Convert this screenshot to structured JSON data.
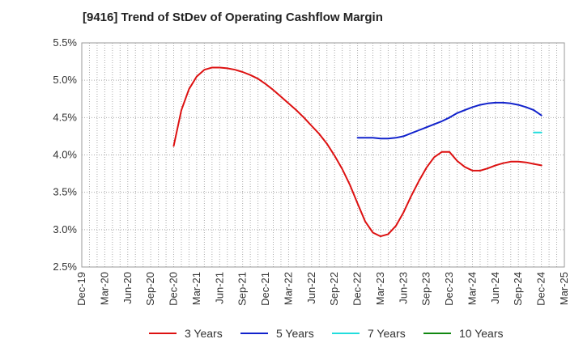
{
  "title": "[9416]  Trend of StDev of Operating Cashflow Margin",
  "chart_data": {
    "type": "line",
    "title": "[9416]  Trend of StDev of Operating Cashflow Margin",
    "xlabel": "",
    "ylabel": "",
    "x_tick_labels": [
      "Dec-19",
      "Mar-20",
      "Jun-20",
      "Sep-20",
      "Dec-20",
      "Mar-21",
      "Jun-21",
      "Sep-21",
      "Dec-21",
      "Mar-22",
      "Jun-22",
      "Sep-22",
      "Dec-22",
      "Mar-23",
      "Jun-23",
      "Sep-23",
      "Dec-23",
      "Mar-24",
      "Jun-24",
      "Sep-24",
      "Dec-24",
      "Mar-25"
    ],
    "y_tick_labels": [
      "2.5%",
      "3.0%",
      "3.5%",
      "4.0%",
      "4.5%",
      "5.0%",
      "5.5%"
    ],
    "ylim": [
      2.5,
      5.5
    ],
    "grid": true,
    "legend_position": "bottom",
    "series": [
      {
        "name": "3 Years",
        "color": "#dd1111",
        "points": [
          [
            "Dec-20",
            4.12
          ],
          [
            "Jan-21",
            4.6
          ],
          [
            "Feb-21",
            4.88
          ],
          [
            "Mar-21",
            5.05
          ],
          [
            "Apr-21",
            5.14
          ],
          [
            "May-21",
            5.17
          ],
          [
            "Jun-21",
            5.17
          ],
          [
            "Jul-21",
            5.16
          ],
          [
            "Aug-21",
            5.14
          ],
          [
            "Sep-21",
            5.11
          ],
          [
            "Oct-21",
            5.07
          ],
          [
            "Nov-21",
            5.02
          ],
          [
            "Dec-21",
            4.95
          ],
          [
            "Jan-22",
            4.87
          ],
          [
            "Feb-22",
            4.78
          ],
          [
            "Mar-22",
            4.69
          ],
          [
            "Apr-22",
            4.6
          ],
          [
            "May-22",
            4.5
          ],
          [
            "Jun-22",
            4.39
          ],
          [
            "Jul-22",
            4.28
          ],
          [
            "Aug-22",
            4.15
          ],
          [
            "Sep-22",
            3.99
          ],
          [
            "Oct-22",
            3.81
          ],
          [
            "Nov-22",
            3.6
          ],
          [
            "Dec-22",
            3.35
          ],
          [
            "Jan-23",
            3.11
          ],
          [
            "Feb-23",
            2.96
          ],
          [
            "Mar-23",
            2.91
          ],
          [
            "Apr-23",
            2.94
          ],
          [
            "May-23",
            3.05
          ],
          [
            "Jun-23",
            3.23
          ],
          [
            "Jul-23",
            3.45
          ],
          [
            "Aug-23",
            3.65
          ],
          [
            "Sep-23",
            3.83
          ],
          [
            "Oct-23",
            3.97
          ],
          [
            "Nov-23",
            4.04
          ],
          [
            "Dec-23",
            4.04
          ],
          [
            "Jan-24",
            3.92
          ],
          [
            "Feb-24",
            3.84
          ],
          [
            "Mar-24",
            3.79
          ],
          [
            "Apr-24",
            3.79
          ],
          [
            "May-24",
            3.82
          ],
          [
            "Jun-24",
            3.86
          ],
          [
            "Jul-24",
            3.89
          ],
          [
            "Aug-24",
            3.91
          ],
          [
            "Sep-24",
            3.91
          ],
          [
            "Oct-24",
            3.9
          ],
          [
            "Nov-24",
            3.88
          ],
          [
            "Dec-24",
            3.86
          ]
        ]
      },
      {
        "name": "5 Years",
        "color": "#1122cc",
        "points": [
          [
            "Dec-22",
            4.23
          ],
          [
            "Jan-23",
            4.23
          ],
          [
            "Feb-23",
            4.23
          ],
          [
            "Mar-23",
            4.22
          ],
          [
            "Apr-23",
            4.22
          ],
          [
            "May-23",
            4.23
          ],
          [
            "Jun-23",
            4.25
          ],
          [
            "Jul-23",
            4.29
          ],
          [
            "Aug-23",
            4.33
          ],
          [
            "Sep-23",
            4.37
          ],
          [
            "Oct-23",
            4.41
          ],
          [
            "Nov-23",
            4.45
          ],
          [
            "Dec-23",
            4.5
          ],
          [
            "Jan-24",
            4.56
          ],
          [
            "Feb-24",
            4.6
          ],
          [
            "Mar-24",
            4.64
          ],
          [
            "Apr-24",
            4.67
          ],
          [
            "May-24",
            4.69
          ],
          [
            "Jun-24",
            4.7
          ],
          [
            "Jul-24",
            4.7
          ],
          [
            "Aug-24",
            4.69
          ],
          [
            "Sep-24",
            4.67
          ],
          [
            "Oct-24",
            4.64
          ],
          [
            "Nov-24",
            4.6
          ],
          [
            "Dec-24",
            4.53
          ]
        ]
      },
      {
        "name": "7 Years",
        "color": "#22dddd",
        "points": [
          [
            "Nov-24",
            4.3
          ],
          [
            "Dec-24",
            4.3
          ]
        ]
      },
      {
        "name": "10 Years",
        "color": "#118811",
        "points": []
      }
    ]
  }
}
